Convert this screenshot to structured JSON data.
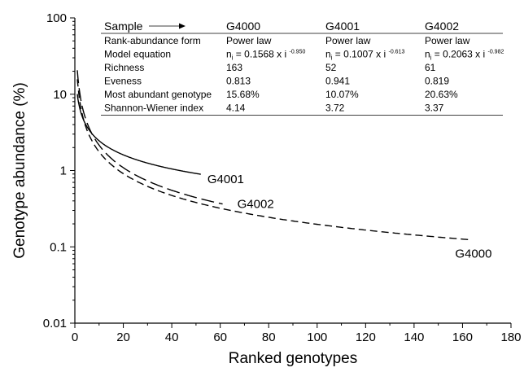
{
  "chart_data": {
    "type": "line",
    "xlabel": "Ranked genotypes",
    "ylabel": "Genotype abundance (%)",
    "xlim": [
      0,
      180
    ],
    "ylim": [
      0.01,
      100
    ],
    "ylog": true,
    "xticks": [
      0,
      20,
      40,
      60,
      80,
      100,
      120,
      140,
      160,
      180
    ],
    "yticks": [
      0.01,
      0.1,
      1,
      10,
      100
    ],
    "ytick_labels": [
      "0.01",
      "0.1",
      "1",
      "10",
      "100"
    ],
    "grid": false,
    "legend": "none",
    "series": [
      {
        "name": "G4000",
        "dash": "long-dash",
        "model": {
          "a": 0.1568,
          "b": -0.95
        },
        "x_range": [
          1,
          163
        ],
        "label_at": 163
      },
      {
        "name": "G4001",
        "dash": "solid",
        "model": {
          "a": 0.1007,
          "b": -0.613
        },
        "x_range": [
          1,
          52
        ],
        "label_at": 52
      },
      {
        "name": "G4002",
        "dash": "dash",
        "model": {
          "a": 0.2063,
          "b": -0.982
        },
        "x_range": [
          1,
          61
        ],
        "label_at": 61
      }
    ],
    "table": {
      "header": [
        "Sample",
        "G4000",
        "G4001",
        "G4002"
      ],
      "rows": [
        [
          "Rank-abundance form",
          "Power law",
          "Power law",
          "Power law"
        ],
        [
          "Model equation",
          "ni = 0.1568 x i -0.950",
          "ni = 0.1007 x i -0.613",
          "ni = 0.2063 x i -0.982"
        ],
        [
          "Richness",
          "163",
          "52",
          "61"
        ],
        [
          "Eveness",
          "0.813",
          "0.941",
          "0.819"
        ],
        [
          "Most abundant genotype",
          "15.68%",
          "10.07%",
          "20.63%"
        ],
        [
          "Shannon-Wiener index",
          "4.14",
          "3.72",
          "3.37"
        ]
      ],
      "equations": [
        {
          "prefix": "n",
          "sub": "i",
          "coef": " = 0.1568 x i ",
          "exp": "-0.950"
        },
        {
          "prefix": "n",
          "sub": "i",
          "coef": " = 0.1007 x i ",
          "exp": "-0.613"
        },
        {
          "prefix": "n",
          "sub": "i",
          "coef": " = 0.2063 x i ",
          "exp": "-0.982"
        }
      ]
    }
  }
}
